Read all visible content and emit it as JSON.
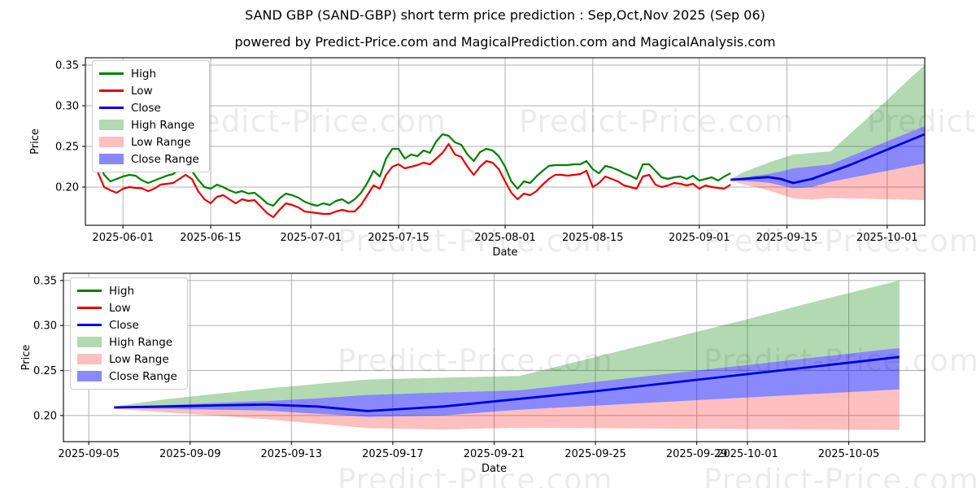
{
  "title": "SAND GBP (SAND-GBP) short term price prediction : Sep,Oct,Nov 2025 (Sep 06)",
  "subtitle": "powered by Predict-Price.com and MagicalPrediction.com and MagicalAnalysis.com",
  "watermark_text": "Predict-Price.com",
  "colors": {
    "high": "#008000",
    "low": "#e50000",
    "close": "#0000dd",
    "high_range": "rgba(0,128,0,0.30)",
    "low_range": "rgba(255,0,0,0.25)",
    "close_range": "rgba(20,20,250,0.50)",
    "grid": "#b0b0b0",
    "spine": "#1a1a1a",
    "watermark": "rgba(0,0,0,0.08)"
  },
  "legend": {
    "items": [
      {
        "label": "High",
        "type": "line",
        "color_key": "high"
      },
      {
        "label": "Low",
        "type": "line",
        "color_key": "low"
      },
      {
        "label": "Close",
        "type": "line",
        "color_key": "close"
      },
      {
        "label": "High Range",
        "type": "patch",
        "color_key": "high_range"
      },
      {
        "label": "Low Range",
        "type": "patch",
        "color_key": "low_range"
      },
      {
        "label": "Close Range",
        "type": "patch",
        "color_key": "close_range"
      }
    ]
  },
  "chart_data": {
    "type": "line",
    "price_axis_label": "Price",
    "date_axis_label": "Date",
    "yticks": [
      0.2,
      0.25,
      0.3,
      0.35
    ],
    "historical": {
      "start": "2025-05-28",
      "high": [
        0.232,
        0.215,
        0.207,
        0.21,
        0.213,
        0.215,
        0.214,
        0.2085,
        0.205,
        0.208,
        0.211,
        0.214,
        0.216,
        0.222,
        0.226,
        0.22,
        0.209,
        0.2,
        0.198,
        0.203,
        0.2,
        0.196,
        0.193,
        0.195,
        0.192,
        0.193,
        0.187,
        0.18,
        0.177,
        0.186,
        0.192,
        0.19,
        0.187,
        0.182,
        0.179,
        0.177,
        0.18,
        0.178,
        0.183,
        0.185,
        0.18,
        0.185,
        0.193,
        0.205,
        0.22,
        0.213,
        0.235,
        0.247,
        0.247,
        0.235,
        0.24,
        0.238,
        0.245,
        0.242,
        0.256,
        0.265,
        0.263,
        0.255,
        0.252,
        0.24,
        0.232,
        0.243,
        0.247,
        0.245,
        0.238,
        0.225,
        0.207,
        0.198,
        0.207,
        0.205,
        0.213,
        0.22,
        0.226,
        0.227,
        0.227,
        0.227,
        0.228,
        0.228,
        0.232,
        0.222,
        0.217,
        0.226,
        0.224,
        0.221,
        0.217,
        0.214,
        0.21,
        0.228,
        0.228,
        0.22,
        0.212,
        0.21,
        0.212,
        0.213,
        0.21,
        0.214,
        0.208,
        0.21,
        0.212,
        0.208,
        0.213,
        0.217
      ],
      "low": [
        0.218,
        0.2,
        0.196,
        0.193,
        0.198,
        0.2,
        0.199,
        0.1985,
        0.195,
        0.198,
        0.203,
        0.204,
        0.205,
        0.21,
        0.215,
        0.21,
        0.195,
        0.185,
        0.18,
        0.188,
        0.19,
        0.185,
        0.18,
        0.185,
        0.183,
        0.184,
        0.176,
        0.168,
        0.163,
        0.172,
        0.18,
        0.178,
        0.175,
        0.17,
        0.169,
        0.168,
        0.167,
        0.167,
        0.17,
        0.172,
        0.17,
        0.17,
        0.178,
        0.19,
        0.202,
        0.198,
        0.215,
        0.225,
        0.228,
        0.223,
        0.225,
        0.227,
        0.23,
        0.228,
        0.235,
        0.242,
        0.253,
        0.24,
        0.237,
        0.225,
        0.215,
        0.225,
        0.232,
        0.23,
        0.222,
        0.207,
        0.193,
        0.185,
        0.192,
        0.19,
        0.195,
        0.203,
        0.21,
        0.215,
        0.215,
        0.214,
        0.215,
        0.216,
        0.22,
        0.2,
        0.205,
        0.213,
        0.21,
        0.207,
        0.202,
        0.2,
        0.198,
        0.213,
        0.215,
        0.203,
        0.2,
        0.202,
        0.205,
        0.204,
        0.202,
        0.204,
        0.198,
        0.202,
        0.2,
        0.199,
        0.198,
        0.203
      ]
    },
    "prediction": {
      "dates": [
        "2025-09-06",
        "2025-09-08",
        "2025-09-10",
        "2025-09-12",
        "2025-09-14",
        "2025-09-16",
        "2025-09-19",
        "2025-09-22",
        "2025-09-25",
        "2025-09-28",
        "2025-10-01",
        "2025-10-04",
        "2025-10-07"
      ],
      "close": [
        0.209,
        0.21,
        0.2112,
        0.2122,
        0.21,
        0.205,
        0.21,
        0.2185,
        0.227,
        0.2365,
        0.246,
        0.2555,
        0.265
      ],
      "close_top": [
        0.2095,
        0.2115,
        0.214,
        0.216,
        0.219,
        0.223,
        0.2255,
        0.228,
        0.2374,
        0.2468,
        0.2562,
        0.2656,
        0.275
      ],
      "close_bottom": [
        0.2085,
        0.2075,
        0.2065,
        0.2055,
        0.202,
        0.1985,
        0.2,
        0.2065,
        0.211,
        0.2155,
        0.22,
        0.2245,
        0.229
      ],
      "high_top": [
        0.21,
        0.218,
        0.224,
        0.23,
        0.235,
        0.24,
        0.242,
        0.244,
        0.265,
        0.286,
        0.307,
        0.329,
        0.35
      ],
      "low_bottom": [
        0.2075,
        0.2035,
        0.2,
        0.196,
        0.191,
        0.186,
        0.1845,
        0.1865,
        0.186,
        0.1855,
        0.185,
        0.1845,
        0.184
      ]
    },
    "top_chart": {
      "name": "history-and-prediction-chart",
      "x_domain": [
        "2025-05-26",
        "2025-10-07"
      ],
      "y_domain": [
        0.153,
        0.359
      ],
      "xticks": [
        "2025-06-01",
        "2025-06-15",
        "2025-07-01",
        "2025-07-15",
        "2025-08-01",
        "2025-08-15",
        "2025-09-01",
        "2025-09-15",
        "2025-10-01"
      ]
    },
    "bottom_chart": {
      "name": "prediction-zoom-chart",
      "x_domain": [
        "2025-09-04",
        "2025-10-08"
      ],
      "y_domain": [
        0.171,
        0.358
      ],
      "xticks": [
        "2025-09-05",
        "2025-09-09",
        "2025-09-13",
        "2025-09-17",
        "2025-09-21",
        "2025-09-25",
        "2025-09-29",
        "2025-10-01",
        "2025-10-05"
      ]
    }
  }
}
